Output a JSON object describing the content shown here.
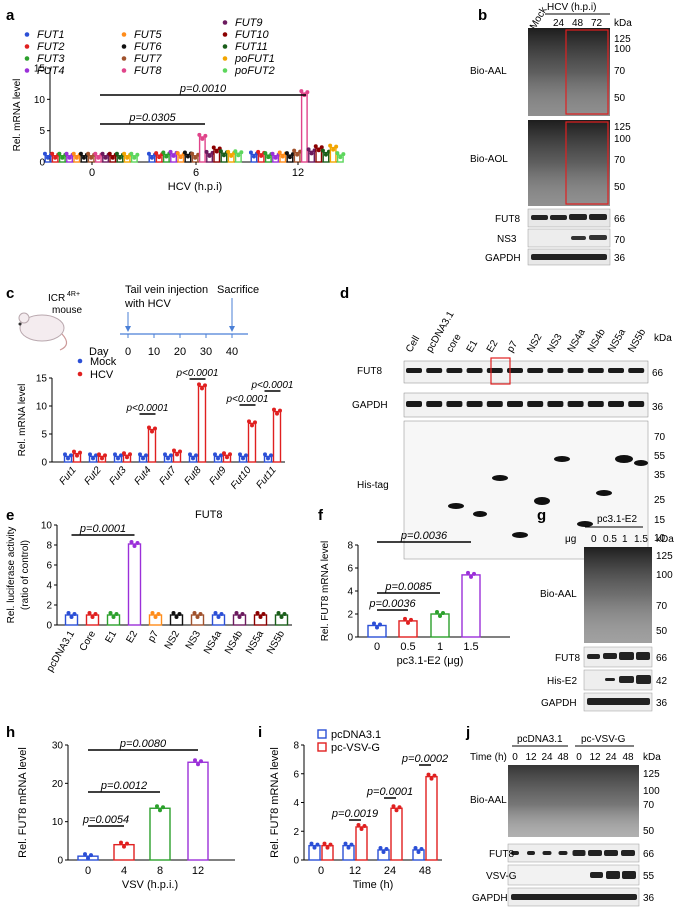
{
  "panels": {
    "a": {
      "letter": "a",
      "ylabel": "Rel. mRNA level",
      "xlabel": "HCV (h.p.i)",
      "x_ticks": [
        "0",
        "6",
        "12"
      ],
      "y_ticks": [
        "0",
        "5",
        "10",
        "15"
      ],
      "p_values": [
        "p=0.0305",
        "p=0.0010"
      ],
      "legend": [
        {
          "name": "FUT1",
          "color": "#2b4fd6"
        },
        {
          "name": "FUT2",
          "color": "#e02020"
        },
        {
          "name": "FUT3",
          "color": "#2ca02c"
        },
        {
          "name": "FUT4",
          "color": "#9b30d9"
        },
        {
          "name": "FUT5",
          "color": "#ff8c1a"
        },
        {
          "name": "FUT6",
          "color": "#111111"
        },
        {
          "name": "FUT7",
          "color": "#a0522d"
        },
        {
          "name": "FUT8",
          "color": "#e0448a"
        },
        {
          "name": "FUT9",
          "color": "#6b1a5e"
        },
        {
          "name": "FUT10",
          "color": "#8b0000"
        },
        {
          "name": "FUT11",
          "color": "#1a5e1a"
        },
        {
          "name": "poFUT1",
          "color": "#f2a500"
        },
        {
          "name": "poFUT2",
          "color": "#5cd65c"
        }
      ]
    },
    "b": {
      "letter": "b",
      "lane_labels": [
        "Mock",
        "24",
        "48",
        "72"
      ],
      "header": "HCV (h.p.i)",
      "kda": "kDa",
      "rows": [
        "Bio-AAL",
        "Bio-AOL",
        "FUT8",
        "NS3",
        "GAPDH"
      ],
      "mw_aal": [
        "125",
        "100",
        "70",
        "50"
      ],
      "mw_aol": [
        "125",
        "100",
        "70",
        "50"
      ],
      "mw_small": [
        "66",
        "70",
        "36"
      ]
    },
    "c": {
      "letter": "c",
      "mouse": "ICR4R+ mouse",
      "mouse_sup": "4R+",
      "mouse_base": "ICR",
      "mouse_line2": "mouse",
      "timeline_inj": "Tail vein injection",
      "timeline_inj2": "with HCV",
      "timeline_sac": "Sacrifice",
      "day": "Day",
      "days": [
        "0",
        "10",
        "20",
        "30",
        "40"
      ],
      "ylabel": "Rel. mRNA level",
      "y_ticks": [
        "0",
        "5",
        "10",
        "15"
      ],
      "legend": [
        {
          "name": "Mock",
          "color": "#2b4fd6"
        },
        {
          "name": "HCV",
          "color": "#e02020"
        }
      ],
      "p_values": [
        "p<0.0001",
        "p<0.0001",
        "p<0.0001",
        "p<0.0001"
      ]
    },
    "d": {
      "letter": "d",
      "lanes": [
        "Cell",
        "pcDNA3.1",
        "core",
        "E1",
        "E2",
        "p7",
        "NS2",
        "NS3",
        "NS4a",
        "NS4b",
        "NS5a",
        "NS5b"
      ],
      "kda": "kDa",
      "rows": [
        "FUT8",
        "GAPDH",
        "His-tag"
      ],
      "mw_top": [
        "66",
        "36"
      ],
      "mw_his": [
        "70",
        "55",
        "35",
        "25",
        "15",
        "10"
      ]
    },
    "e": {
      "letter": "e",
      "title": "FUT8",
      "ylabel": "Rel. luciferase activity",
      "ylabel2": "(ratio of control)",
      "y_ticks": [
        "0",
        "2",
        "4",
        "6",
        "8",
        "10"
      ],
      "p_value": "p=0.0001"
    },
    "f": {
      "letter": "f",
      "ylabel": "Rel. FUT8 mRNA level",
      "xlabel": "pc3.1-E2 (μg)",
      "x_ticks": [
        "0",
        "0.5",
        "1",
        "1.5"
      ],
      "y_ticks": [
        "0",
        "2",
        "4",
        "6",
        "8"
      ],
      "p_values": [
        "p=0.0036",
        "p=0.0085",
        "p=0.0036"
      ]
    },
    "g": {
      "letter": "g",
      "header": "pc3.1-E2",
      "ug": "μg",
      "lanes": [
        "0",
        "0.5",
        "1",
        "1.5"
      ],
      "kda": "kDa",
      "rows": [
        "Bio-AAL",
        "FUT8",
        "His-E2",
        "GAPDH"
      ],
      "mw_aal": [
        "125",
        "100",
        "70",
        "50"
      ],
      "mw_small": [
        "66",
        "42",
        "36"
      ]
    },
    "h": {
      "letter": "h",
      "ylabel": "Rel. FUT8 mRNA level",
      "xlabel": "VSV (h.p.i.)",
      "x_ticks": [
        "0",
        "4",
        "8",
        "12"
      ],
      "y_ticks": [
        "0",
        "10",
        "20",
        "30"
      ],
      "p_values": [
        "p=0.0054",
        "p=0.0012",
        "p=0.0080"
      ]
    },
    "i": {
      "letter": "i",
      "ylabel": "Rel. FUT8 mRNA level",
      "xlabel": "Time (h)",
      "x_ticks": [
        "0",
        "12",
        "24",
        "48"
      ],
      "y_ticks": [
        "0",
        "2",
        "4",
        "6",
        "8"
      ],
      "legend": [
        {
          "name": "pcDNA3.1",
          "color": "#2b4fd6"
        },
        {
          "name": "pc-VSV-G",
          "color": "#e02020"
        }
      ],
      "p_values": [
        "p=0.0019",
        "p=0.0001",
        "p=0.0002"
      ]
    },
    "j": {
      "letter": "j",
      "group1": "pcDNA3.1",
      "group2": "pc-VSV-G",
      "time": "Time (h)",
      "lanes": [
        "0",
        "12",
        "24",
        "48",
        "0",
        "12",
        "24",
        "48"
      ],
      "kda": "kDa",
      "rows": [
        "Bio-AAL",
        "FUT8",
        "VSV-G",
        "GAPDH"
      ],
      "mw_aal": [
        "125",
        "100",
        "70",
        "50"
      ],
      "mw_small": [
        "66",
        "55",
        "36"
      ]
    }
  },
  "chart_data": [
    {
      "panel": "a",
      "type": "bar",
      "categories": [
        "0",
        "6",
        "12"
      ],
      "series": [
        {
          "name": "FUT1",
          "values": [
            1.0,
            1.0,
            1.2
          ]
        },
        {
          "name": "FUT2",
          "values": [
            1.0,
            1.1,
            1.3
          ]
        },
        {
          "name": "FUT3",
          "values": [
            1.0,
            1.2,
            1.1
          ]
        },
        {
          "name": "FUT4",
          "values": [
            1.0,
            1.3,
            1.0
          ]
        },
        {
          "name": "FUT5",
          "values": [
            1.0,
            1.1,
            1.2
          ]
        },
        {
          "name": "FUT6",
          "values": [
            1.0,
            1.2,
            1.1
          ]
        },
        {
          "name": "FUT7",
          "values": [
            1.0,
            1.0,
            1.5
          ]
        },
        {
          "name": "FUT8",
          "values": [
            1.0,
            4.0,
            11.0
          ]
        },
        {
          "name": "FUT9",
          "values": [
            1.0,
            1.3,
            1.7
          ]
        },
        {
          "name": "FUT10",
          "values": [
            1.0,
            2.0,
            2.2
          ]
        },
        {
          "name": "FUT11",
          "values": [
            1.0,
            1.4,
            1.5
          ]
        },
        {
          "name": "poFUT1",
          "values": [
            1.0,
            1.3,
            2.3
          ]
        },
        {
          "name": "poFUT2",
          "values": [
            1.0,
            1.4,
            1.1
          ]
        }
      ],
      "xlabel": "HCV (h.p.i)",
      "ylabel": "Rel. mRNA level",
      "ylim": [
        0,
        15
      ]
    },
    {
      "panel": "c",
      "type": "bar",
      "categories": [
        "Fut1",
        "Fut2",
        "Fut3",
        "Fut4",
        "Fut7",
        "Fut8",
        "Fut9",
        "Fut10",
        "Fut11"
      ],
      "series": [
        {
          "name": "Mock",
          "values": [
            1,
            1,
            1,
            1,
            1,
            1,
            1,
            1,
            1
          ]
        },
        {
          "name": "HCV",
          "values": [
            1.5,
            1.0,
            1.2,
            5.8,
            1.7,
            13.5,
            1.2,
            6.9,
            9.0
          ]
        }
      ],
      "ylabel": "Rel. mRNA level",
      "ylim": [
        0,
        15
      ]
    },
    {
      "panel": "e",
      "type": "bar",
      "categories": [
        "pcDNA3.1",
        "Core",
        "E1",
        "E2",
        "p7",
        "NS2",
        "NS3",
        "NS4a",
        "NS4b",
        "NS5a",
        "NS5b"
      ],
      "values": [
        1.0,
        1.0,
        1.0,
        8.1,
        1.0,
        1.0,
        1.0,
        1.0,
        1.0,
        1.0,
        1.0
      ],
      "title": "FUT8",
      "ylim": [
        0,
        10
      ]
    },
    {
      "panel": "f",
      "type": "bar",
      "categories": [
        "0",
        "0.5",
        "1",
        "1.5"
      ],
      "values": [
        1.0,
        1.4,
        2.0,
        5.4
      ],
      "xlabel": "pc3.1-E2 (μg)",
      "ylabel": "Rel. FUT8 mRNA level",
      "ylim": [
        0,
        8
      ]
    },
    {
      "panel": "h",
      "type": "bar",
      "categories": [
        "0",
        "4",
        "8",
        "12"
      ],
      "values": [
        1.0,
        4.0,
        13.5,
        25.5
      ],
      "xlabel": "VSV (h.p.i.)",
      "ylabel": "Rel. FUT8 mRNA level",
      "ylim": [
        0,
        30
      ]
    },
    {
      "panel": "i",
      "type": "bar",
      "categories": [
        "0",
        "12",
        "24",
        "48"
      ],
      "series": [
        {
          "name": "pcDNA3.1",
          "values": [
            1.0,
            1.0,
            0.7,
            0.7
          ]
        },
        {
          "name": "pc-VSV-G",
          "values": [
            1.0,
            2.3,
            3.6,
            5.8
          ]
        }
      ],
      "xlabel": "Time (h)",
      "ylabel": "Rel. FUT8 mRNA level",
      "ylim": [
        0,
        8
      ]
    }
  ]
}
